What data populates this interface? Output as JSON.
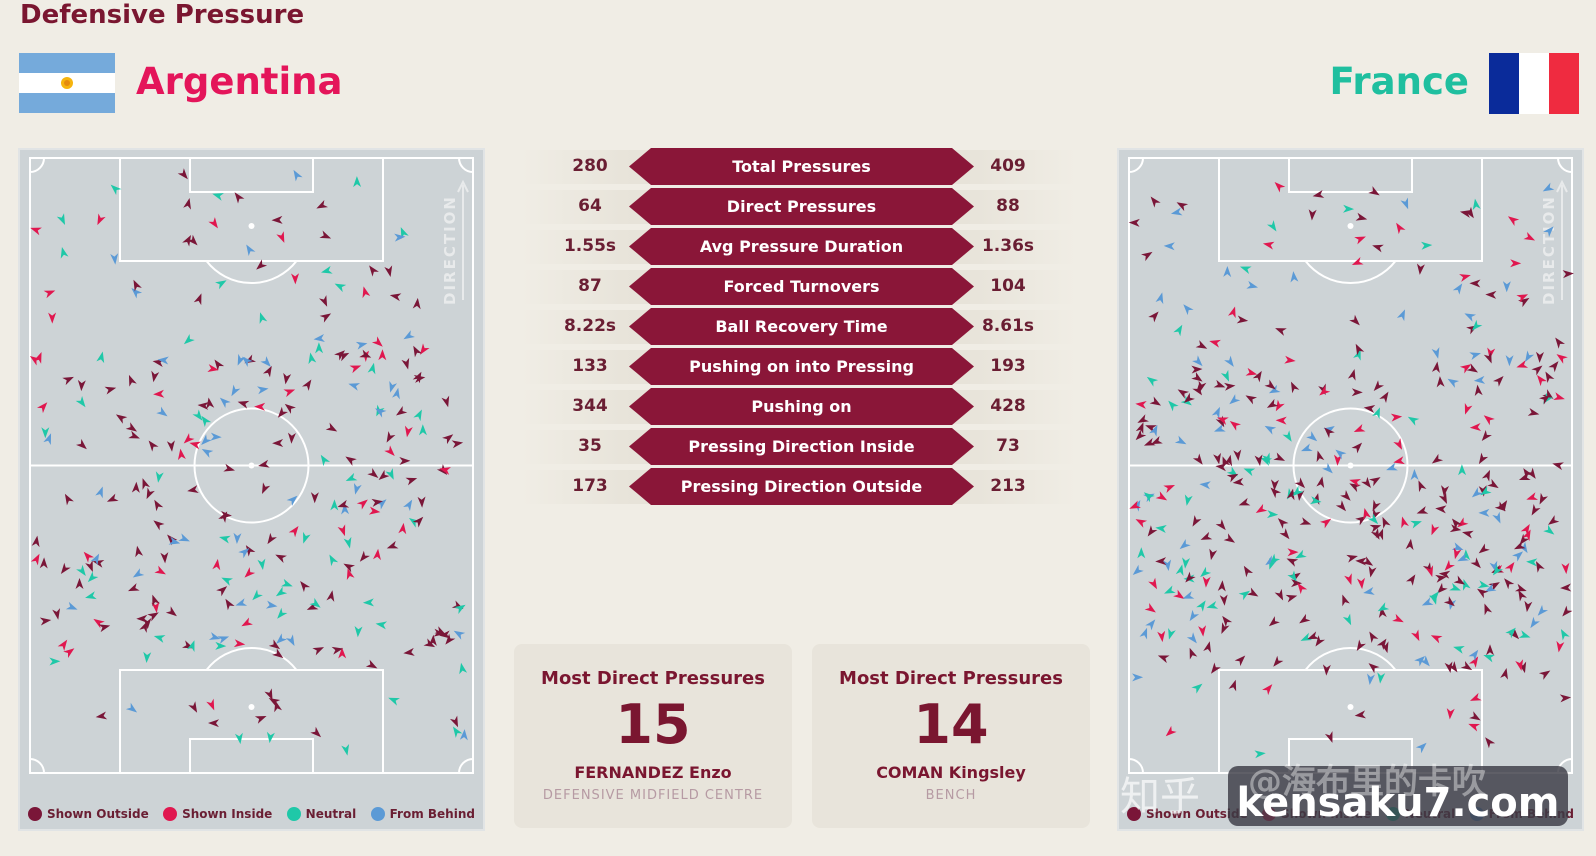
{
  "header": {
    "title": "Defensive Pressure"
  },
  "teams": {
    "left": {
      "name": "Argentina",
      "flag": "argentina-flag"
    },
    "right": {
      "name": "France",
      "flag": "france-flag"
    }
  },
  "colors": {
    "shown_outside": "#7a1638",
    "shown_inside": "#e0174f",
    "neutral": "#1fc8a8",
    "from_behind": "#5b9ad6",
    "accent": "#8a1638"
  },
  "pitch": {
    "direction_label": "DIRECTION"
  },
  "legend": [
    {
      "label": "Shown Outside",
      "color": "#7a1638"
    },
    {
      "label": "Shown Inside",
      "color": "#e0174f"
    },
    {
      "label": "Neutral",
      "color": "#1fc8a8"
    },
    {
      "label": "From Behind",
      "color": "#5b9ad6"
    }
  ],
  "stats": [
    {
      "label": "Total Pressures",
      "left": "280",
      "right": "409"
    },
    {
      "label": "Direct Pressures",
      "left": "64",
      "right": "88"
    },
    {
      "label": "Avg Pressure Duration",
      "left": "1.55s",
      "right": "1.36s"
    },
    {
      "label": "Forced Turnovers",
      "left": "87",
      "right": "104"
    },
    {
      "label": "Ball Recovery Time",
      "left": "8.22s",
      "right": "8.61s"
    },
    {
      "label": "Pushing on into Pressing",
      "left": "133",
      "right": "193"
    },
    {
      "label": "Pushing on",
      "left": "344",
      "right": "428"
    },
    {
      "label": "Pressing Direction Inside",
      "left": "35",
      "right": "73"
    },
    {
      "label": "Pressing Direction Outside",
      "left": "173",
      "right": "213"
    }
  ],
  "cards": {
    "left": {
      "title": "Most Direct Pressures",
      "value": "15",
      "name": "FERNANDEZ Enzo",
      "position": "DEFENSIVE MIDFIELD CENTRE"
    },
    "right": {
      "title": "Most Direct Pressures",
      "value": "14",
      "name": "COMAN Kingsley",
      "position": "BENCH"
    }
  },
  "watermark": {
    "cn": "知乎",
    "handle": "@海布里的卡吹",
    "site": "kensaku7.com"
  }
}
